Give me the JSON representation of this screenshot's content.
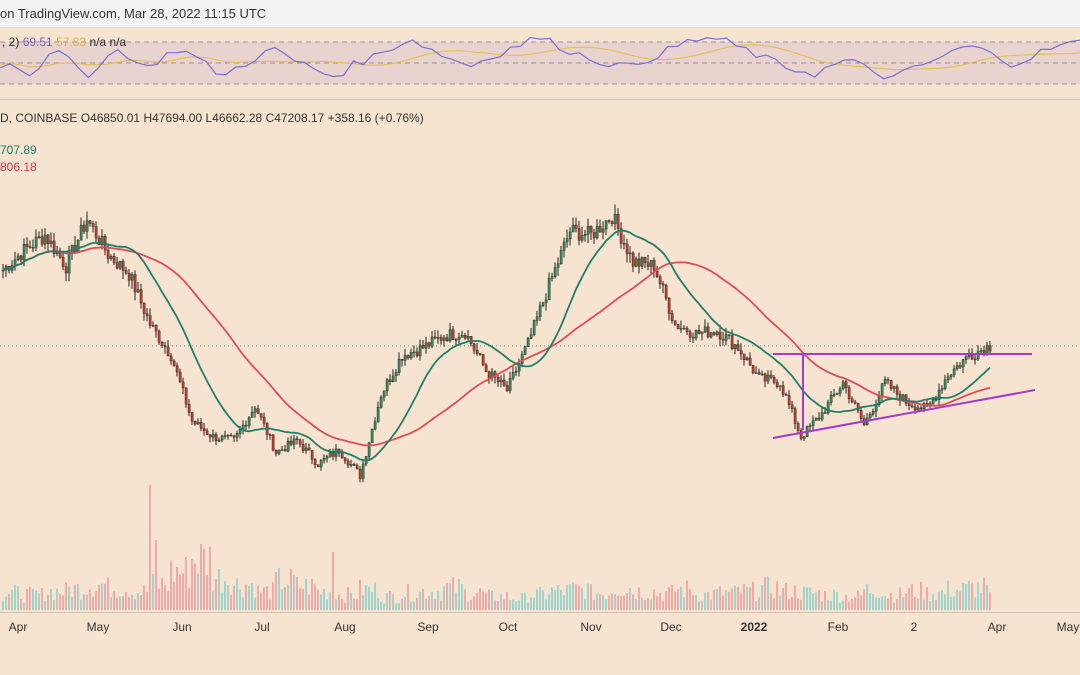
{
  "header": {
    "attribution": "on TradingView.com, Mar 28, 2022 11:15 UTC"
  },
  "rsi": {
    "legend_prefix": ", 2)",
    "value_rsi": "69.51",
    "value_ma": "57.83",
    "na1": "n/a",
    "na2": "n/a",
    "line_color": "#7b6fd0",
    "ma_color": "#e2c257",
    "series": [
      48,
      52,
      45,
      40,
      48,
      55,
      60,
      52,
      45,
      40,
      48,
      56,
      62,
      58,
      50,
      45,
      52,
      58,
      63,
      60,
      55,
      48,
      42,
      38,
      45,
      50,
      55,
      60,
      62,
      58,
      52,
      48,
      45,
      40,
      38,
      42,
      48,
      52,
      56,
      60,
      65,
      70,
      72,
      68,
      62,
      58,
      54,
      50,
      48,
      52,
      56,
      60,
      64,
      68,
      72,
      74,
      70,
      66,
      62,
      58,
      55,
      52,
      50,
      48,
      46,
      50,
      54,
      58,
      62,
      66,
      70,
      72,
      74,
      72,
      70,
      66,
      62,
      58,
      54,
      50,
      46,
      44,
      42,
      40,
      44,
      48,
      52,
      50,
      46,
      42,
      38,
      36,
      40,
      44,
      48,
      52,
      56,
      60,
      64,
      66,
      62,
      58,
      54,
      50,
      52,
      56,
      60,
      64,
      66,
      68,
      69.5
    ]
  },
  "ohlc_legend": {
    "prefix": "D, COINBASE",
    "open": "O46850.01",
    "high": "H47694.00",
    "low": "L46662.28",
    "close": "C47208.17",
    "change": "+358.16 (+0.76%)"
  },
  "ma_legend": {
    "ma20": "707.89",
    "ma50": "806.18"
  },
  "chart_data": {
    "type": "candlestick",
    "symbol": "COINBASE",
    "interval": "D",
    "colors": {
      "up": "#26a69a",
      "down": "#ef5350",
      "ma20": "#1f7f6b",
      "ma50": "#e04b5a",
      "pattern": "#a63bc4"
    },
    "x_ticks": [
      "Apr",
      "May",
      "Jun",
      "Jul",
      "Aug",
      "Sep",
      "Oct",
      "Nov",
      "Dec",
      "2022",
      "Feb",
      "2",
      "Apr",
      "May"
    ],
    "x_tick_bold": [
      false,
      false,
      false,
      false,
      false,
      false,
      false,
      false,
      false,
      true,
      false,
      false,
      false,
      false
    ],
    "close_anchors": [
      57000,
      59500,
      61500,
      57500,
      63500,
      59000,
      56500,
      50000,
      46000,
      37500,
      35500,
      35000,
      39500,
      33500,
      35000,
      32000,
      33800,
      30500,
      41000,
      46000,
      47000,
      48500,
      49000,
      44000,
      41500,
      47500,
      55000,
      62000,
      61500,
      64000,
      58000,
      57500,
      50000,
      48800,
      49200,
      47000,
      43000,
      42500,
      35500,
      38500,
      42500,
      37000,
      42500,
      40000,
      39000,
      43500,
      46000,
      47200
    ],
    "volume_anchors": [
      20,
      18,
      22,
      25,
      30,
      26,
      22,
      30,
      45,
      60,
      38,
      30,
      22,
      34,
      28,
      22,
      18,
      24,
      16,
      20,
      22,
      26,
      20,
      16,
      14,
      18,
      22,
      24,
      20,
      26,
      22,
      20,
      24,
      18,
      20,
      22,
      26,
      22,
      20,
      18,
      16,
      24,
      18,
      22,
      20,
      24,
      26,
      14
    ]
  }
}
